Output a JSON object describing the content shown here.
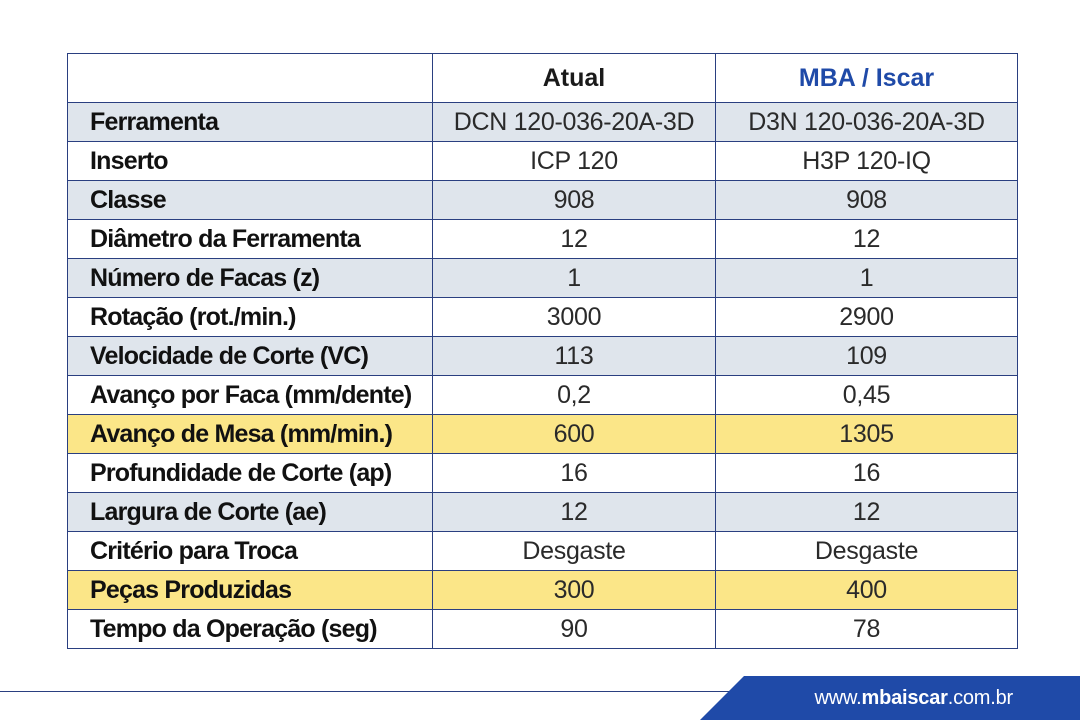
{
  "table": {
    "headers": [
      "",
      "Atual",
      "MBA / Iscar"
    ],
    "rows": [
      {
        "label": "Ferramenta",
        "atual": "DCN 120-036-20A-3D",
        "mba": "D3N 120-036-20A-3D"
      },
      {
        "label": "Inserto",
        "atual": "ICP 120",
        "mba": "H3P 120-IQ"
      },
      {
        "label": "Classe",
        "atual": "908",
        "mba": "908"
      },
      {
        "label": "Diâmetro da Ferramenta",
        "atual": "12",
        "mba": "12"
      },
      {
        "label": "Número de Facas (z)",
        "atual": "1",
        "mba": "1"
      },
      {
        "label": "Rotação (rot./min.)",
        "atual": "3000",
        "mba": "2900"
      },
      {
        "label": "Velocidade de Corte (VC)",
        "atual": "113",
        "mba": "109"
      },
      {
        "label": "Avanço por Faca (mm/dente)",
        "atual": "0,2",
        "mba": "0,45"
      },
      {
        "label": "Avanço de Mesa (mm/min.)",
        "atual": "600",
        "mba": "1305"
      },
      {
        "label": "Profundidade de Corte (ap)",
        "atual": "16",
        "mba": "16"
      },
      {
        "label": "Largura de Corte (ae)",
        "atual": "12",
        "mba": "12"
      },
      {
        "label": "Critério para Troca",
        "atual": "Desgaste",
        "mba": "Desgaste"
      },
      {
        "label": "Peças Produzidas",
        "atual": "300",
        "mba": "400"
      },
      {
        "label": "Tempo da Operação (seg)",
        "atual": "90",
        "mba": "78"
      }
    ]
  },
  "footer": {
    "url_prefix": "www.",
    "url_brand": "mbaiscar",
    "url_suffix": ".com.br"
  },
  "colors": {
    "border": "#2a3f80",
    "accent_blue": "#1f4aa8",
    "row_alt": "#dfe5ec",
    "row_highlight": "#fbe688"
  }
}
